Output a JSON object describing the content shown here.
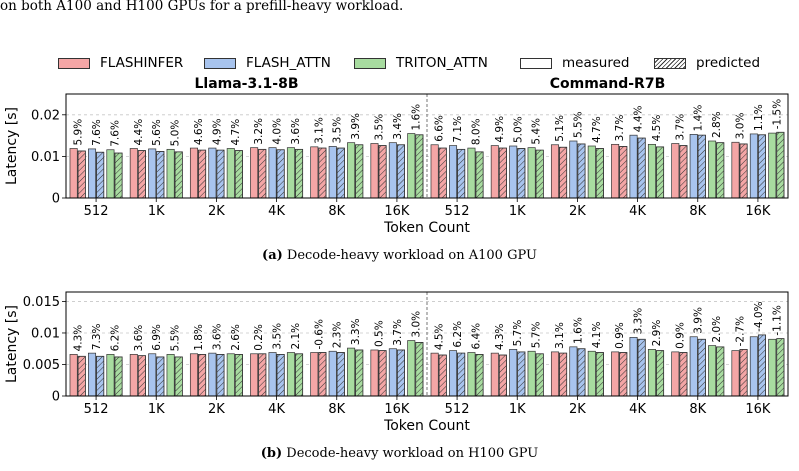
{
  "caption_top": "on both A100 and H100 GPUs for a prefill-heavy workload.",
  "legend": {
    "items": [
      {
        "label": "FLASHINFER",
        "fill": "#f4a6a6",
        "hatch": false
      },
      {
        "label": "FLASH_ATTN",
        "fill": "#a8c4ee",
        "hatch": false
      },
      {
        "label": "TRITON_ATTN",
        "fill": "#a8dca0",
        "hatch": false
      },
      {
        "label": "measured",
        "fill": "#ffffff",
        "hatch": false
      },
      {
        "label": "predicted",
        "fill": "#ffffff",
        "hatch": true
      }
    ]
  },
  "colors": {
    "flashinfer": "#f4a6a6",
    "flash_attn": "#a8c4ee",
    "triton_attn": "#a8dca0"
  },
  "captions": {
    "a": {
      "label": "(a)",
      "text": " Decode-heavy workload on A100 GPU"
    },
    "b": {
      "label": "(b)",
      "text": " Decode-heavy workload on H100 GPU"
    }
  },
  "chart_data": [
    {
      "type": "bar",
      "ylabel": "Latency [s]",
      "xlabel": "Token Count",
      "ylim": [
        0,
        0.025
      ],
      "yticks": [
        0,
        0.01,
        0.02
      ],
      "ytick_labels": [
        "0",
        "0.01",
        "0.02"
      ],
      "categories": [
        "512",
        "1K",
        "2K",
        "4K",
        "8K",
        "16K"
      ],
      "series_names": [
        "FLASHINFER",
        "FLASH_ATTN",
        "TRITON_ATTN"
      ],
      "groups": [
        {
          "title": "Llama-3.1-8B",
          "measured": [
            [
              0.0119,
              0.0118,
              0.0116
            ],
            [
              0.0119,
              0.0118,
              0.0117
            ],
            [
              0.012,
              0.012,
              0.0119
            ],
            [
              0.0121,
              0.0121,
              0.0121
            ],
            [
              0.0123,
              0.0124,
              0.0133
            ],
            [
              0.0131,
              0.0133,
              0.0155
            ]
          ],
          "predicted": [
            [
              0.0113,
              0.011,
              0.0108
            ],
            [
              0.0114,
              0.0112,
              0.0111
            ],
            [
              0.0115,
              0.0115,
              0.0114
            ],
            [
              0.0117,
              0.0116,
              0.0117
            ],
            [
              0.012,
              0.012,
              0.0128
            ],
            [
              0.0126,
              0.0128,
              0.0152
            ]
          ],
          "labels": [
            [
              "5.9%",
              "7.6%",
              "7.6%"
            ],
            [
              "4.4%",
              "5.6%",
              "5.0%"
            ],
            [
              "4.6%",
              "4.9%",
              "4.7%"
            ],
            [
              "3.2%",
              "4.0%",
              "3.6%"
            ],
            [
              "3.1%",
              "3.5%",
              "3.9%"
            ],
            [
              "3.5%",
              "3.4%",
              "1.6%"
            ]
          ]
        },
        {
          "title": "Command-R7B",
          "measured": [
            [
              0.0128,
              0.0126,
              0.012
            ],
            [
              0.0126,
              0.0125,
              0.0121
            ],
            [
              0.0128,
              0.0137,
              0.0125
            ],
            [
              0.0129,
              0.0151,
              0.0129
            ],
            [
              0.0131,
              0.0153,
              0.0137
            ],
            [
              0.0134,
              0.0154,
              0.0156
            ]
          ],
          "predicted": [
            [
              0.012,
              0.0117,
              0.0111
            ],
            [
              0.012,
              0.0119,
              0.0115
            ],
            [
              0.0122,
              0.013,
              0.0119
            ],
            [
              0.0124,
              0.0144,
              0.0123
            ],
            [
              0.0126,
              0.0151,
              0.0133
            ],
            [
              0.013,
              0.0152,
              0.0158
            ]
          ],
          "labels": [
            [
              "6.6%",
              "7.1%",
              "8.0%"
            ],
            [
              "4.9%",
              "5.0%",
              "5.4%"
            ],
            [
              "5.1%",
              "5.5%",
              "4.7%"
            ],
            [
              "3.7%",
              "4.4%",
              "4.5%"
            ],
            [
              "3.7%",
              "1.4%",
              "2.8%"
            ],
            [
              "3.0%",
              "1.1%",
              "-1.5%"
            ]
          ]
        }
      ]
    },
    {
      "type": "bar",
      "ylabel": "Latency [s]",
      "xlabel": "Token Count",
      "ylim": [
        0,
        0.0165
      ],
      "yticks": [
        0,
        0.005,
        0.01,
        0.015
      ],
      "ytick_labels": [
        "0",
        "0.005",
        "0.01",
        "0.015"
      ],
      "categories": [
        "512",
        "1K",
        "2K",
        "4K",
        "8K",
        "16K"
      ],
      "series_names": [
        "FLASHINFER",
        "FLASH_ATTN",
        "TRITON_ATTN"
      ],
      "groups": [
        {
          "title": "",
          "measured": [
            [
              0.0066,
              0.0068,
              0.0066
            ],
            [
              0.0066,
              0.0067,
              0.0066
            ],
            [
              0.0067,
              0.0068,
              0.0067
            ],
            [
              0.0067,
              0.0069,
              0.0069
            ],
            [
              0.0069,
              0.0071,
              0.0076
            ],
            [
              0.0073,
              0.0075,
              0.0088
            ]
          ],
          "predicted": [
            [
              0.0063,
              0.0063,
              0.0062
            ],
            [
              0.0064,
              0.0062,
              0.0062
            ],
            [
              0.0066,
              0.0066,
              0.0066
            ],
            [
              0.0067,
              0.0066,
              0.0067
            ],
            [
              0.0069,
              0.0069,
              0.0073
            ],
            [
              0.0072,
              0.0073,
              0.0085
            ]
          ],
          "labels": [
            [
              "4.3%",
              "7.3%",
              "6.2%"
            ],
            [
              "3.6%",
              "6.9%",
              "5.5%"
            ],
            [
              "1.8%",
              "3.6%",
              "2.6%"
            ],
            [
              "0.2%",
              "3.5%",
              "2.1%"
            ],
            [
              "-0.6%",
              "2.3%",
              "3.3%"
            ],
            [
              "0.5%",
              "3.7%",
              "3.0%"
            ]
          ]
        },
        {
          "title": "",
          "measured": [
            [
              0.0068,
              0.0072,
              0.0069
            ],
            [
              0.0068,
              0.0074,
              0.0071
            ],
            [
              0.007,
              0.0078,
              0.0071
            ],
            [
              0.007,
              0.0093,
              0.0074
            ],
            [
              0.007,
              0.0094,
              0.008
            ],
            [
              0.0072,
              0.0094,
              0.009
            ]
          ],
          "predicted": [
            [
              0.0065,
              0.0068,
              0.0066
            ],
            [
              0.0065,
              0.007,
              0.0067
            ],
            [
              0.0068,
              0.0075,
              0.0069
            ],
            [
              0.0069,
              0.009,
              0.0072
            ],
            [
              0.0069,
              0.009,
              0.0078
            ],
            [
              0.0074,
              0.0097,
              0.0091
            ]
          ],
          "labels": [
            [
              "4.5%",
              "6.2%",
              "6.4%"
            ],
            [
              "4.3%",
              "5.7%",
              "5.7%"
            ],
            [
              "3.1%",
              "1.6%",
              "4.1%"
            ],
            [
              "0.9%",
              "3.3%",
              "2.9%"
            ],
            [
              "0.9%",
              "3.9%",
              "2.0%"
            ],
            [
              "-2.7%",
              "-4.0%",
              "-1.1%"
            ]
          ]
        }
      ]
    }
  ]
}
